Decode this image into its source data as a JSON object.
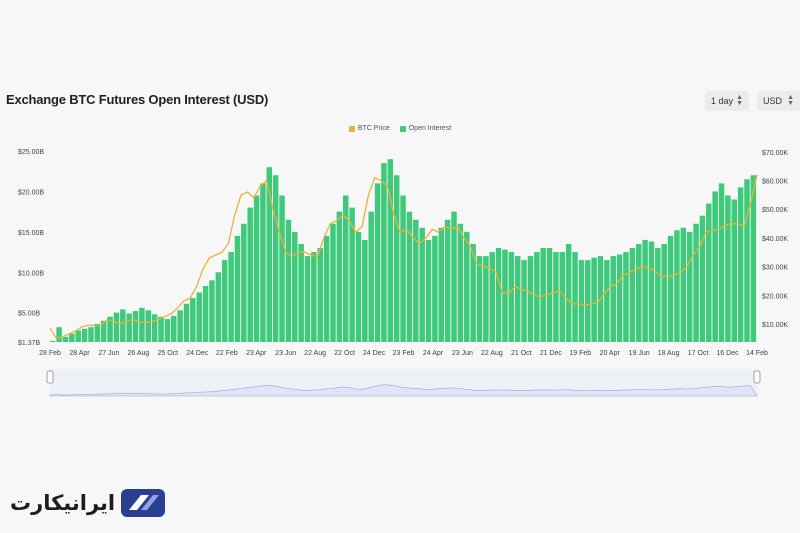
{
  "title": "Exchange BTC Futures Open Interest (USD)",
  "controls": {
    "interval": "1 day",
    "currency": "USD"
  },
  "brand": {
    "name": "ایرانیکارت",
    "color": "#2a3f92"
  },
  "colors": {
    "price": "#e8b23a",
    "oi": "#3ec97b",
    "navigator": "#dfe4f7"
  },
  "chart_data": {
    "type": "bar",
    "series": [
      {
        "name": "BTC Price",
        "type": "line",
        "axis": "right"
      },
      {
        "name": "Open Interest",
        "type": "bar",
        "axis": "left"
      }
    ],
    "x_ticks": [
      "28 Feb",
      "28 Apr",
      "27 Jun",
      "26 Aug",
      "25 Oct",
      "24 Dec",
      "22 Feb",
      "23 Apr",
      "23 Jun",
      "22 Aug",
      "22 Oct",
      "24 Dec",
      "23 Feb",
      "24 Apr",
      "23 Jun",
      "22 Aug",
      "21 Oct",
      "21 Dec",
      "19 Feb",
      "20 Apr",
      "19 Jun",
      "18 Aug",
      "17 Oct",
      "16 Dec",
      "14 Feb"
    ],
    "left_ticks": [
      {
        "label": "$25.00B",
        "value": 25
      },
      {
        "label": "$20.00B",
        "value": 20
      },
      {
        "label": "$15.00B",
        "value": 15
      },
      {
        "label": "$10.00B",
        "value": 10
      },
      {
        "label": "$5.00B",
        "value": 5
      },
      {
        "label": "$1.37B",
        "value": 1.37
      }
    ],
    "right_ticks": [
      {
        "label": "$70.00K",
        "value": 70
      },
      {
        "label": "$60.00K",
        "value": 60
      },
      {
        "label": "$50.00K",
        "value": 50
      },
      {
        "label": "$40.00K",
        "value": 40
      },
      {
        "label": "$30.00K",
        "value": 30
      },
      {
        "label": "$20.00K",
        "value": 20
      },
      {
        "label": "$10.00K",
        "value": 10
      }
    ],
    "ylim_left": [
      1.37,
      25.5
    ],
    "ylim_right": [
      3.7,
      71.7
    ],
    "open_interest_b": [
      1.5,
      3.2,
      2.0,
      2.4,
      2.8,
      3.0,
      3.2,
      3.6,
      4.0,
      4.5,
      5.0,
      5.4,
      4.9,
      5.2,
      5.6,
      5.3,
      4.8,
      4.5,
      4.2,
      4.6,
      5.3,
      6.1,
      6.8,
      7.5,
      8.3,
      9.0,
      10.0,
      11.5,
      12.5,
      14.5,
      16.0,
      18.0,
      19.5,
      21.0,
      23.0,
      22.0,
      19.5,
      16.5,
      15.0,
      13.5,
      12.0,
      12.5,
      13.0,
      14.5,
      16.0,
      17.5,
      19.5,
      18.0,
      15.0,
      14.0,
      17.5,
      21.0,
      23.5,
      24.0,
      22.0,
      19.5,
      17.5,
      16.5,
      15.5,
      14.0,
      14.5,
      15.5,
      16.5,
      17.5,
      16.0,
      15.0,
      13.5,
      12.0,
      12.0,
      12.5,
      13.0,
      12.8,
      12.5,
      12.0,
      11.5,
      12.0,
      12.5,
      13.0,
      13.0,
      12.5,
      12.5,
      13.5,
      12.5,
      11.5,
      11.5,
      11.8,
      12.0,
      11.5,
      12.0,
      12.2,
      12.5,
      13.0,
      13.5,
      14.0,
      13.8,
      13.0,
      13.5,
      14.5,
      15.2,
      15.5,
      15.0,
      16.0,
      17.0,
      18.5,
      20.0,
      21.0,
      19.5,
      19.0,
      20.5,
      21.5,
      22.0
    ],
    "btc_price_k": [
      8.5,
      5.0,
      5.5,
      6.5,
      7.5,
      9.0,
      9.5,
      9.5,
      9.5,
      11.5,
      11.0,
      10.0,
      11.0,
      11.5,
      10.8,
      10.5,
      10.8,
      11.5,
      12.5,
      13.5,
      15.5,
      18.0,
      19.0,
      23.0,
      29.0,
      33.0,
      34.0,
      35.0,
      38.0,
      48.0,
      55.0,
      56.0,
      54.0,
      58.0,
      60.0,
      50.0,
      42.0,
      35.0,
      33.5,
      35.0,
      35.0,
      34.0,
      33.5,
      40.0,
      45.0,
      46.0,
      48.0,
      46.0,
      42.0,
      44.0,
      55.0,
      61.0,
      60.0,
      58.0,
      48.0,
      42.0,
      43.0,
      40.0,
      38.0,
      40.0,
      43.0,
      42.0,
      44.0,
      43.0,
      44.0,
      40.0,
      37.0,
      31.0,
      30.0,
      29.5,
      28.0,
      21.0,
      20.5,
      23.0,
      22.0,
      21.5,
      20.0,
      19.5,
      20.0,
      21.0,
      21.5,
      19.0,
      17.0,
      17.0,
      16.5,
      17.0,
      17.5,
      20.5,
      23.0,
      24.0,
      27.0,
      28.0,
      29.0,
      30.0,
      29.5,
      28.5,
      26.5,
      26.5,
      27.0,
      28.0,
      30.0,
      34.0,
      37.0,
      42.0,
      42.5,
      43.0,
      44.5,
      45.0,
      45.0,
      44.0,
      52.0,
      62.0
    ]
  }
}
